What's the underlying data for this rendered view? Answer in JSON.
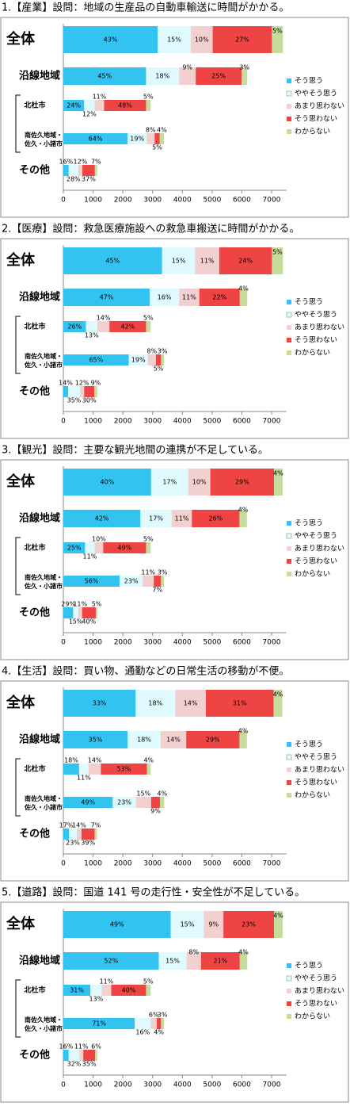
{
  "chart_data": [
    {
      "type": "bar",
      "orientation": "horizontal",
      "title": "1.【産業】設問：地域の生産品の自動車輸送に時間がかかる。",
      "categories": [
        "全体",
        "沿線地域",
        "北杜市",
        "南佐久地域・佐久・小諸市",
        "その他"
      ],
      "xlim": [
        0,
        7500
      ],
      "xticks": [
        0,
        1000,
        2000,
        3000,
        4000,
        5000,
        6000,
        7000
      ],
      "grid": false,
      "stacked": true,
      "legend": "right",
      "series": [
        {
          "name": "そう思う",
          "color": "#33c3f0",
          "values": [
            3170,
            2780,
            700,
            2160,
            180
          ],
          "value_labels": [
            "43%",
            "45%",
            "24%",
            "64%",
            "16%"
          ]
        },
        {
          "name": "ややそう思う",
          "color": "#e0fbff",
          "values": [
            1110,
            1110,
            350,
            640,
            320
          ],
          "value_labels": [
            "15%",
            "18%",
            "12%",
            "19%",
            "28%"
          ]
        },
        {
          "name": "あまり思わない",
          "color": "#f2d0d0",
          "values": [
            740,
            560,
            320,
            270,
            140
          ],
          "value_labels": [
            "10%",
            "9%",
            "11%",
            "8%",
            "12%"
          ]
        },
        {
          "name": "そう思わない",
          "color": "#ee4444",
          "values": [
            1990,
            1540,
            1410,
            170,
            420
          ],
          "value_labels": [
            "27%",
            "25%",
            "48%",
            "5%",
            "37%"
          ]
        },
        {
          "name": "わからない",
          "color": "#c4dc9c",
          "values": [
            370,
            190,
            150,
            140,
            80
          ],
          "value_labels": [
            "5%",
            "3%",
            "5%",
            "4%",
            "7%"
          ]
        }
      ]
    },
    {
      "type": "bar",
      "orientation": "horizontal",
      "title": "2.【医療】設問：救急医療施設への救急車搬送に時間がかかる。",
      "categories": [
        "全体",
        "沿線地域",
        "北杜市",
        "南佐久地域・佐久・小諸市",
        "その他"
      ],
      "xlim": [
        0,
        7500
      ],
      "xticks": [
        0,
        1000,
        2000,
        3000,
        4000,
        5000,
        6000,
        7000
      ],
      "grid": false,
      "stacked": true,
      "legend": "right",
      "series": [
        {
          "name": "そう思う",
          "color": "#33c3f0",
          "values": [
            3320,
            2900,
            760,
            2200,
            160
          ],
          "value_labels": [
            "45%",
            "47%",
            "26%",
            "65%",
            "14%"
          ]
        },
        {
          "name": "ややそう思う",
          "color": "#e0fbff",
          "values": [
            1110,
            990,
            380,
            640,
            400
          ],
          "value_labels": [
            "15%",
            "16%",
            "13%",
            "19%",
            "35%"
          ]
        },
        {
          "name": "あまり思わない",
          "color": "#f2d0d0",
          "values": [
            810,
            680,
            410,
            270,
            140
          ],
          "value_labels": [
            "11%",
            "11%",
            "14%",
            "8%",
            "12%"
          ]
        },
        {
          "name": "そう思わない",
          "color": "#ee4444",
          "values": [
            1770,
            1360,
            1230,
            170,
            340
          ],
          "value_labels": [
            "24%",
            "22%",
            "42%",
            "5%",
            "30%"
          ]
        },
        {
          "name": "わからない",
          "color": "#c4dc9c",
          "values": [
            370,
            250,
            150,
            100,
            100
          ],
          "value_labels": [
            "5%",
            "4%",
            "5%",
            "3%",
            "9%"
          ]
        }
      ]
    },
    {
      "type": "bar",
      "orientation": "horizontal",
      "title": "3.【観光】設問：主要な観光地間の連携が不足している。",
      "categories": [
        "全体",
        "沿線地域",
        "北杜市",
        "南佐久地域・佐久・小諸市",
        "その他"
      ],
      "xlim": [
        0,
        7500
      ],
      "xticks": [
        0,
        1000,
        2000,
        3000,
        4000,
        5000,
        6000,
        7000
      ],
      "grid": false,
      "stacked": true,
      "legend": "right",
      "series": [
        {
          "name": "そう思う",
          "color": "#33c3f0",
          "values": [
            2950,
            2590,
            730,
            1890,
            330
          ],
          "value_labels": [
            "40%",
            "42%",
            "25%",
            "56%",
            "29%"
          ]
        },
        {
          "name": "ややそう思う",
          "color": "#e0fbff",
          "values": [
            1250,
            1050,
            320,
            780,
            170
          ],
          "value_labels": [
            "17%",
            "17%",
            "11%",
            "23%",
            "15%"
          ]
        },
        {
          "name": "あまり思わない",
          "color": "#f2d0d0",
          "values": [
            740,
            680,
            290,
            370,
            130
          ],
          "value_labels": [
            "10%",
            "11%",
            "10%",
            "11%",
            "11%"
          ]
        },
        {
          "name": "そう思わない",
          "color": "#ee4444",
          "values": [
            2140,
            1600,
            1440,
            240,
            460
          ],
          "value_labels": [
            "29%",
            "26%",
            "49%",
            "7%",
            "40%"
          ]
        },
        {
          "name": "わからない",
          "color": "#c4dc9c",
          "values": [
            290,
            250,
            150,
            100,
            60
          ],
          "value_labels": [
            "4%",
            "4%",
            "5%",
            "3%",
            "5%"
          ]
        }
      ]
    },
    {
      "type": "bar",
      "orientation": "horizontal",
      "title": "4.【生活】設問：買い物、通勤などの日常生活の移動が不便。",
      "categories": [
        "全体",
        "沿線地域",
        "北杜市",
        "南佐久地域・佐久・小諸市",
        "その他"
      ],
      "xlim": [
        0,
        7500
      ],
      "xticks": [
        0,
        1000,
        2000,
        3000,
        4000,
        5000,
        6000,
        7000
      ],
      "grid": false,
      "stacked": true,
      "legend": "right",
      "series": [
        {
          "name": "そう思う",
          "color": "#33c3f0",
          "values": [
            2430,
            2160,
            530,
            1660,
            190
          ],
          "value_labels": [
            "33%",
            "35%",
            "18%",
            "49%",
            "17%"
          ]
        },
        {
          "name": "ややそう思う",
          "color": "#e0fbff",
          "values": [
            1330,
            1110,
            320,
            780,
            260
          ],
          "value_labels": [
            "18%",
            "18%",
            "11%",
            "23%",
            "23%"
          ]
        },
        {
          "name": "あまり思わない",
          "color": "#f2d0d0",
          "values": [
            1030,
            860,
            410,
            510,
            160
          ],
          "value_labels": [
            "14%",
            "14%",
            "14%",
            "15%",
            "14%"
          ]
        },
        {
          "name": "そう思わない",
          "color": "#ee4444",
          "values": [
            2280,
            1790,
            1550,
            300,
            440
          ],
          "value_labels": [
            "31%",
            "29%",
            "53%",
            "9%",
            "39%"
          ]
        },
        {
          "name": "わからない",
          "color": "#c4dc9c",
          "values": [
            290,
            250,
            120,
            140,
            80
          ],
          "value_labels": [
            "4%",
            "4%",
            "4%",
            "4%",
            "7%"
          ]
        }
      ]
    },
    {
      "type": "bar",
      "orientation": "horizontal",
      "title": "5.【道路】設問：国道 141 号の走行性・安全性が不足している。",
      "categories": [
        "全体",
        "沿線地域",
        "北杜市",
        "南佐久地域・佐久・小諸市",
        "その他"
      ],
      "xlim": [
        0,
        7500
      ],
      "xticks": [
        0,
        1000,
        2000,
        3000,
        4000,
        5000,
        6000,
        7000
      ],
      "grid": false,
      "stacked": true,
      "legend": "right",
      "series": [
        {
          "name": "そう思う",
          "color": "#33c3f0",
          "values": [
            3610,
            3210,
            910,
            2400,
            180
          ],
          "value_labels": [
            "49%",
            "52%",
            "31%",
            "71%",
            "16%"
          ]
        },
        {
          "name": "ややそう思う",
          "color": "#e0fbff",
          "values": [
            1110,
            930,
            380,
            540,
            360
          ],
          "value_labels": [
            "15%",
            "15%",
            "13%",
            "16%",
            "32%"
          ]
        },
        {
          "name": "あまり思わない",
          "color": "#f2d0d0",
          "values": [
            660,
            490,
            320,
            200,
            130
          ],
          "value_labels": [
            "9%",
            "8%",
            "11%",
            "6%",
            "11%"
          ]
        },
        {
          "name": "そう思わない",
          "color": "#ee4444",
          "values": [
            1700,
            1300,
            1170,
            140,
            400
          ],
          "value_labels": [
            "23%",
            "21%",
            "40%",
            "4%",
            "35%"
          ]
        },
        {
          "name": "わからない",
          "color": "#c4dc9c",
          "values": [
            290,
            250,
            150,
            100,
            70
          ],
          "value_labels": [
            "4%",
            "4%",
            "5%",
            "3%",
            "6%"
          ]
        }
      ]
    }
  ]
}
